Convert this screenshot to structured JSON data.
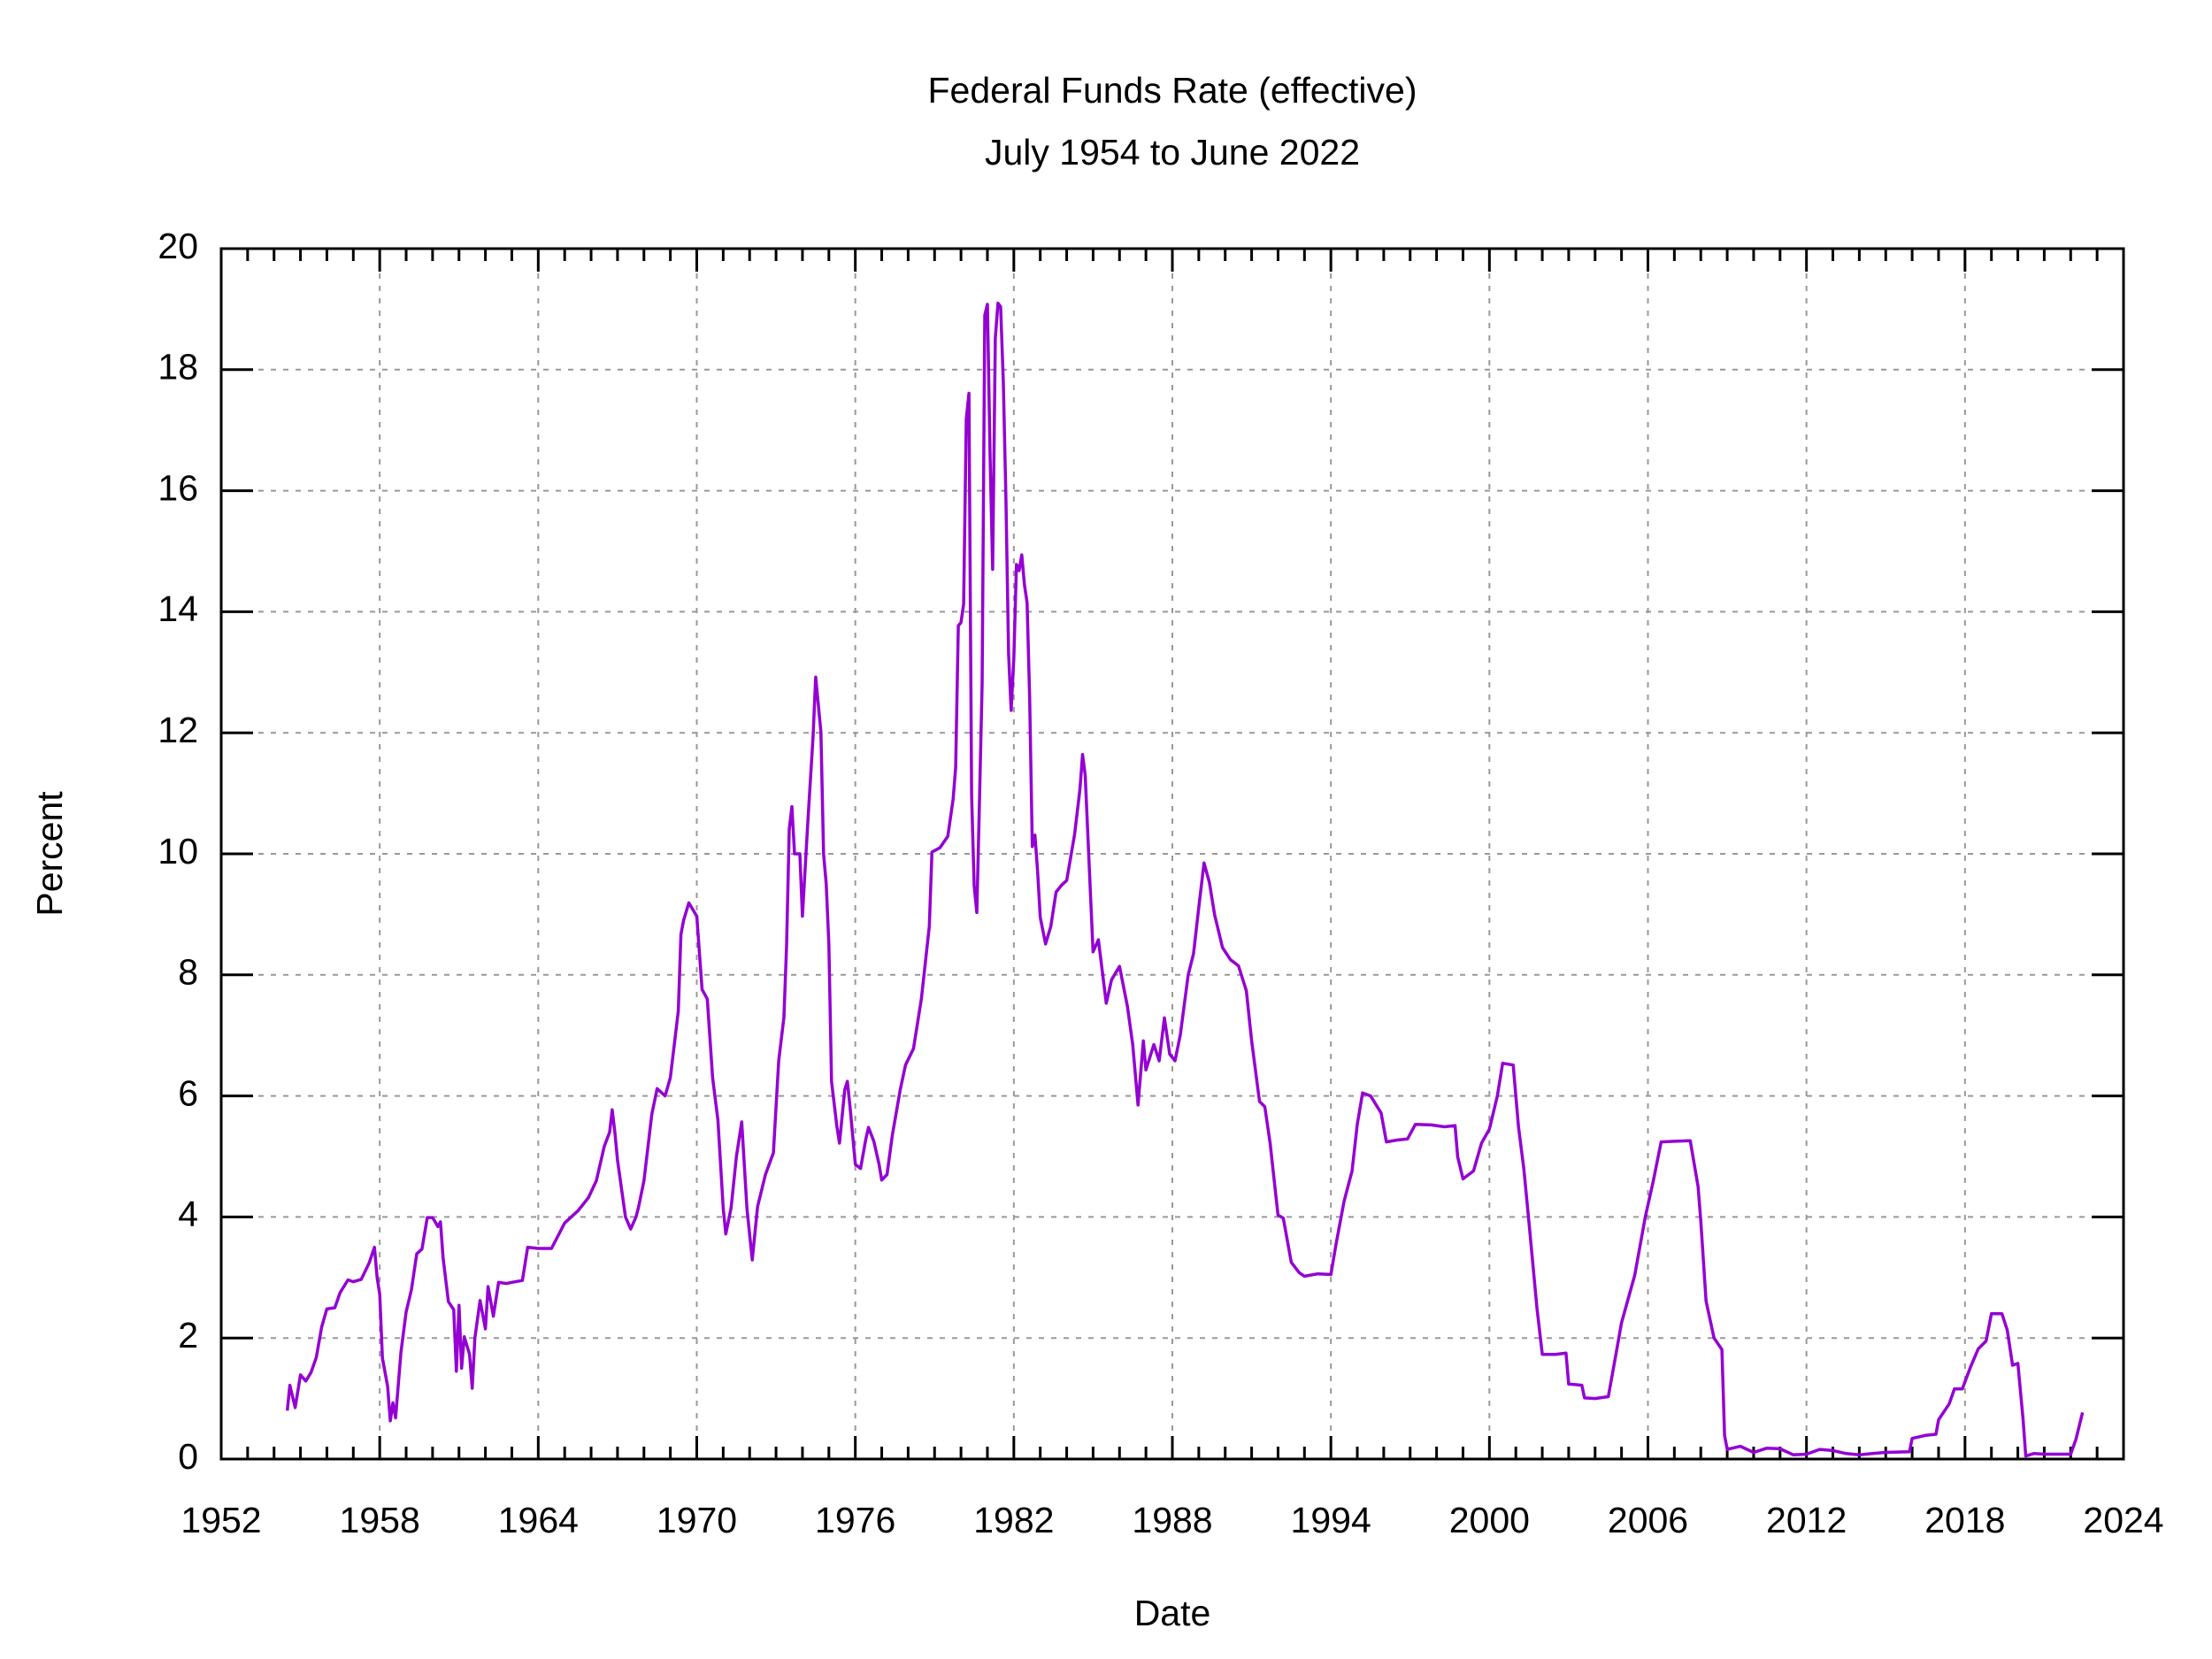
{
  "chart_data": {
    "type": "line",
    "title": "Federal Funds Rate (effective)",
    "subtitle": "July 1954 to June 2022",
    "xlabel": "Date",
    "ylabel": "Percent",
    "color": "#9400d3",
    "grid": true,
    "xlim": [
      1952,
      2024
    ],
    "xticks": [
      1952,
      1958,
      1964,
      1970,
      1976,
      1982,
      1988,
      1994,
      2000,
      2006,
      2012,
      2018,
      2024
    ],
    "xminorticks": [
      1953,
      1954,
      1955,
      1956,
      1957,
      1959,
      1960,
      1961,
      1962,
      1963,
      1965,
      1966,
      1967,
      1968,
      1969,
      1971,
      1972,
      1973,
      1974,
      1975,
      1977,
      1978,
      1979,
      1980,
      1981,
      1983,
      1984,
      1985,
      1986,
      1987,
      1989,
      1990,
      1991,
      1992,
      1993,
      1995,
      1996,
      1997,
      1998,
      1999,
      2001,
      2002,
      2003,
      2004,
      2005,
      2007,
      2008,
      2009,
      2010,
      2011,
      2013,
      2014,
      2015,
      2016,
      2017,
      2019,
      2020,
      2021,
      2022,
      2023
    ],
    "ylim": [
      0,
      20
    ],
    "yticks": [
      0,
      2,
      4,
      6,
      8,
      10,
      12,
      14,
      16,
      18,
      20
    ],
    "x": [
      1954.5,
      1954.6,
      1954.8,
      1955.0,
      1955.2,
      1955.4,
      1955.6,
      1955.8,
      1956.0,
      1956.3,
      1956.5,
      1956.8,
      1957.0,
      1957.3,
      1957.6,
      1957.8,
      1957.9,
      1958.0,
      1958.1,
      1958.3,
      1958.4,
      1958.5,
      1958.6,
      1958.8,
      1959.0,
      1959.2,
      1959.4,
      1959.6,
      1959.8,
      1960.0,
      1960.2,
      1960.3,
      1960.4,
      1960.6,
      1960.8,
      1960.9,
      1961.0,
      1961.1,
      1961.2,
      1961.4,
      1961.5,
      1961.6,
      1961.8,
      1962.0,
      1962.1,
      1962.3,
      1962.5,
      1962.8,
      1963.0,
      1963.4,
      1963.6,
      1964.0,
      1964.5,
      1965.0,
      1965.5,
      1965.9,
      1966.2,
      1966.5,
      1966.7,
      1966.8,
      1966.9,
      1967.0,
      1967.3,
      1967.5,
      1967.7,
      1967.8,
      1968.0,
      1968.3,
      1968.5,
      1968.8,
      1969.0,
      1969.3,
      1969.4,
      1969.5,
      1969.7,
      1970.0,
      1970.2,
      1970.4,
      1970.6,
      1970.8,
      1971.0,
      1971.1,
      1971.3,
      1971.5,
      1971.7,
      1971.9,
      1972.1,
      1972.3,
      1972.6,
      1972.9,
      1973.1,
      1973.3,
      1973.4,
      1973.5,
      1973.6,
      1973.7,
      1973.9,
      1974.0,
      1974.2,
      1974.4,
      1974.5,
      1974.7,
      1974.8,
      1974.9,
      1975.0,
      1975.1,
      1975.3,
      1975.4,
      1975.6,
      1975.7,
      1975.8,
      1976.0,
      1976.2,
      1976.4,
      1976.5,
      1976.7,
      1976.9,
      1977.0,
      1977.2,
      1977.4,
      1977.7,
      1977.9,
      1978.2,
      1978.5,
      1978.8,
      1978.9,
      1979.2,
      1979.5,
      1979.7,
      1979.8,
      1979.9,
      1980.0,
      1980.1,
      1980.2,
      1980.3,
      1980.4,
      1980.5,
      1980.6,
      1980.7,
      1980.8,
      1980.9,
      1981.0,
      1981.1,
      1981.2,
      1981.3,
      1981.4,
      1981.5,
      1981.6,
      1981.7,
      1981.8,
      1981.9,
      1982.0,
      1982.1,
      1982.2,
      1982.3,
      1982.4,
      1982.5,
      1982.6,
      1982.7,
      1982.8,
      1982.9,
      1983.0,
      1983.2,
      1983.4,
      1983.6,
      1983.8,
      1984.0,
      1984.3,
      1984.5,
      1984.6,
      1984.7,
      1984.9,
      1985.0,
      1985.2,
      1985.5,
      1985.7,
      1986.0,
      1986.3,
      1986.5,
      1986.7,
      1986.9,
      1987.0,
      1987.3,
      1987.5,
      1987.7,
      1987.9,
      1988.1,
      1988.3,
      1988.6,
      1988.8,
      1989.0,
      1989.2,
      1989.4,
      1989.6,
      1989.9,
      1990.2,
      1990.5,
      1990.8,
      1991.0,
      1991.3,
      1991.5,
      1991.7,
      1992.0,
      1992.2,
      1992.5,
      1992.8,
      1993.0,
      1993.5,
      1994.0,
      1994.2,
      1994.5,
      1994.8,
      1995.0,
      1995.2,
      1995.5,
      1995.9,
      1996.1,
      1996.5,
      1996.9,
      1997.2,
      1997.8,
      1998.3,
      1998.7,
      1998.8,
      1999.0,
      1999.4,
      1999.7,
      2000.0,
      2000.3,
      2000.5,
      2000.9,
      2001.1,
      2001.3,
      2001.5,
      2001.8,
      2002.0,
      2002.5,
      2002.9,
      2003.0,
      2003.5,
      2003.6,
      2004.0,
      2004.5,
      2004.8,
      2005.0,
      2005.5,
      2005.9,
      2006.2,
      2006.5,
      2007.0,
      2007.6,
      2007.9,
      2008.0,
      2008.2,
      2008.5,
      2008.8,
      2008.9,
      2009.0,
      2009.5,
      2010.0,
      2010.5,
      2011.0,
      2011.5,
      2012.0,
      2012.5,
      2013.0,
      2013.5,
      2014.0,
      2014.5,
      2015.0,
      2015.9,
      2016.0,
      2016.5,
      2016.9,
      2017.0,
      2017.4,
      2017.6,
      2017.9,
      2018.2,
      2018.5,
      2018.8,
      2019.0,
      2019.4,
      2019.6,
      2019.8,
      2020.0,
      2020.2,
      2020.3,
      2020.6,
      2021.0,
      2021.5,
      2022.0,
      2022.2,
      2022.45
    ],
    "values": [
      0.8,
      1.22,
      0.85,
      1.39,
      1.29,
      1.43,
      1.68,
      2.18,
      2.48,
      2.5,
      2.75,
      2.96,
      2.93,
      2.97,
      3.24,
      3.5,
      3.0,
      2.72,
      1.67,
      1.2,
      0.63,
      0.93,
      0.68,
      1.76,
      2.43,
      2.8,
      3.39,
      3.47,
      3.99,
      3.99,
      3.84,
      3.92,
      3.32,
      2.6,
      2.47,
      1.45,
      2.54,
      1.5,
      2.02,
      1.73,
      1.17,
      2.0,
      2.62,
      2.15,
      2.85,
      2.36,
      2.92,
      2.9,
      2.92,
      2.95,
      3.5,
      3.48,
      3.48,
      3.9,
      4.1,
      4.32,
      4.6,
      5.17,
      5.4,
      5.77,
      5.4,
      4.94,
      4.0,
      3.8,
      4.0,
      4.17,
      4.6,
      5.7,
      6.12,
      6.0,
      6.3,
      7.4,
      8.67,
      8.9,
      9.19,
      8.97,
      7.76,
      7.6,
      6.3,
      5.6,
      4.14,
      3.72,
      4.15,
      5.0,
      5.57,
      4.14,
      3.29,
      4.17,
      4.7,
      5.06,
      6.58,
      7.3,
      8.49,
      10.4,
      10.78,
      10.0,
      10.0,
      8.97,
      10.5,
      11.93,
      12.92,
      12.01,
      10.0,
      9.5,
      8.5,
      6.24,
      5.5,
      5.22,
      6.1,
      6.24,
      5.82,
      4.87,
      4.8,
      5.29,
      5.48,
      5.25,
      4.87,
      4.61,
      4.7,
      5.35,
      6.1,
      6.51,
      6.78,
      7.6,
      8.8,
      10.03,
      10.1,
      10.29,
      10.9,
      11.43,
      13.77,
      13.82,
      14.13,
      17.19,
      17.61,
      10.98,
      9.47,
      9.03,
      10.87,
      12.81,
      18.9,
      19.08,
      16.57,
      14.7,
      18.52,
      19.1,
      19.04,
      17.82,
      15.87,
      13.31,
      12.37,
      13.22,
      14.78,
      14.68,
      14.94,
      14.45,
      14.15,
      12.59,
      10.12,
      10.31,
      9.71,
      8.95,
      8.51,
      8.8,
      9.37,
      9.48,
      9.56,
      10.32,
      11.06,
      11.64,
      11.3,
      9.35,
      8.38,
      8.58,
      7.53,
      7.92,
      8.14,
      7.48,
      6.85,
      5.85,
      6.91,
      6.43,
      6.85,
      6.58,
      7.29,
      6.69,
      6.58,
      7.01,
      8.0,
      8.35,
      9.12,
      9.85,
      9.53,
      8.99,
      8.45,
      8.25,
      8.15,
      7.74,
      6.91,
      5.91,
      5.82,
      5.22,
      4.03,
      3.98,
      3.25,
      3.08,
      3.02,
      3.06,
      3.05,
      3.56,
      4.26,
      4.76,
      5.53,
      6.05,
      6.0,
      5.72,
      5.24,
      5.27,
      5.29,
      5.53,
      5.52,
      5.49,
      5.51,
      4.99,
      4.63,
      4.76,
      5.22,
      5.45,
      6.0,
      6.54,
      6.51,
      5.49,
      4.8,
      3.9,
      2.49,
      1.73,
      1.73,
      1.75,
      1.24,
      1.22,
      1.01,
      1.0,
      1.03,
      1.76,
      2.25,
      3.04,
      4.0,
      4.59,
      5.24,
      5.25,
      5.26,
      4.5,
      3.94,
      2.61,
      2.0,
      1.81,
      0.39,
      0.16,
      0.21,
      0.11,
      0.18,
      0.17,
      0.07,
      0.08,
      0.16,
      0.14,
      0.09,
      0.07,
      0.09,
      0.11,
      0.12,
      0.34,
      0.39,
      0.41,
      0.65,
      0.91,
      1.16,
      1.16,
      1.51,
      1.82,
      1.95,
      2.4,
      2.4,
      2.13,
      1.55,
      1.58,
      0.65,
      0.05,
      0.09,
      0.08,
      0.08,
      0.08,
      0.33,
      0.77
    ]
  }
}
